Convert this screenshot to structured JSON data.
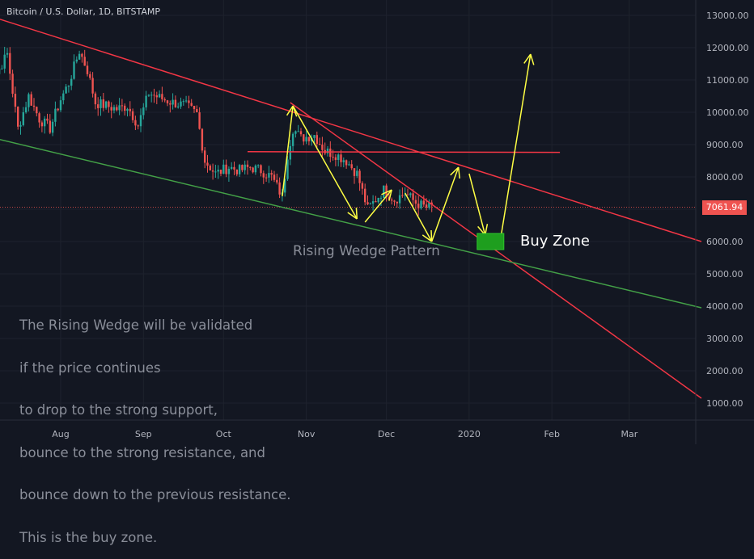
{
  "header": {
    "title": "Bitcoin / U.S. Dollar, 1D, BITSTAMP"
  },
  "annotations": {
    "pattern_label": "Rising Wedge Pattern",
    "buy_zone_label": "Buy Zone",
    "note_lines": [
      "The Rising Wedge will be validated",
      "if the price continues",
      "to drop to the strong support,",
      "bounce to the strong resistance, and",
      "bounce down to the previous resistance.",
      "This is the buy zone."
    ]
  },
  "colors": {
    "background": "#131722",
    "grid": "#1e222d",
    "up_candle": "#26a69a",
    "down_candle": "#ef5350",
    "resistance_line": "#f23645",
    "support_line": "#43a047",
    "arrows": "#ffff44",
    "buy_zone": "#1e9e1e",
    "axis_text": "#b2b5be"
  },
  "chart_data": {
    "type": "candlestick",
    "title": "Bitcoin / U.S. Dollar, 1D, BITSTAMP",
    "x_tick_labels": [
      "Aug",
      "Sep",
      "Oct",
      "Nov",
      "Dec",
      "2020",
      "Feb",
      "Mar"
    ],
    "y_tick_labels": [
      "13000.00",
      "12000.00",
      "11000.00",
      "10000.00",
      "9000.00",
      "8000.00",
      "7000.00",
      "6000.00",
      "5000.00",
      "4000.00",
      "3000.00",
      "2000.00",
      "1000.00"
    ],
    "ylim": [
      500,
      13500
    ],
    "last_price": "7061.94",
    "grid": true,
    "price_path": [
      [
        "2019-07-04",
        12900
      ],
      [
        "2019-07-08",
        11200
      ],
      [
        "2019-07-12",
        11800
      ],
      [
        "2019-07-16",
        9500
      ],
      [
        "2019-07-20",
        10500
      ],
      [
        "2019-07-24",
        9800
      ],
      [
        "2019-07-28",
        9500
      ],
      [
        "2019-08-01",
        10400
      ],
      [
        "2019-08-04",
        10900
      ],
      [
        "2019-08-08",
        11900
      ],
      [
        "2019-08-11",
        11300
      ],
      [
        "2019-08-14",
        10300
      ],
      [
        "2019-08-18",
        10200
      ],
      [
        "2019-08-22",
        10100
      ],
      [
        "2019-08-26",
        10200
      ],
      [
        "2019-08-30",
        9600
      ],
      [
        "2019-09-03",
        10600
      ],
      [
        "2019-09-07",
        10450
      ],
      [
        "2019-09-12",
        10300
      ],
      [
        "2019-09-17",
        10200
      ],
      [
        "2019-09-21",
        9950
      ],
      [
        "2019-09-24",
        8500
      ],
      [
        "2019-09-28",
        8100
      ],
      [
        "2019-10-03",
        8300
      ],
      [
        "2019-10-07",
        8200
      ],
      [
        "2019-10-11",
        8300
      ],
      [
        "2019-10-15",
        8200
      ],
      [
        "2019-10-19",
        8000
      ],
      [
        "2019-10-23",
        7400
      ],
      [
        "2019-10-25",
        8700
      ],
      [
        "2019-10-27",
        9500
      ],
      [
        "2019-10-30",
        9200
      ],
      [
        "2019-11-04",
        9300
      ],
      [
        "2019-11-08",
        8800
      ],
      [
        "2019-11-12",
        8700
      ],
      [
        "2019-11-16",
        8500
      ],
      [
        "2019-11-20",
        8100
      ],
      [
        "2019-11-24",
        7000
      ],
      [
        "2019-11-26",
        7200
      ],
      [
        "2019-11-30",
        7600
      ],
      [
        "2019-12-04",
        7300
      ],
      [
        "2019-12-08",
        7500
      ],
      [
        "2019-12-12",
        7200
      ],
      [
        "2019-12-16",
        7050
      ],
      [
        "2019-12-18",
        7080
      ]
    ],
    "drawn_lines": {
      "upper_resistance": [
        [
          "2019-06-27",
          13200
        ],
        [
          "2020-03-28",
          6000
        ]
      ],
      "steep_resistance": [
        [
          "2019-10-26",
          10300
        ],
        [
          "2020-03-28",
          1150
        ]
      ],
      "horizontal_resistance": [
        [
          "2019-10-10",
          8780
        ],
        [
          "2020-02-04",
          8760
        ]
      ],
      "support": [
        [
          "2019-06-27",
          9400
        ],
        [
          "2020-03-28",
          3950
        ]
      ]
    },
    "projection_arrows": [
      [
        [
          "2019-10-23",
          7400
        ],
        [
          "2019-10-27",
          10200
        ]
      ],
      [
        [
          "2019-10-27",
          10200
        ],
        [
          "2019-11-20",
          6700
        ]
      ],
      [
        [
          "2019-11-23",
          6600
        ],
        [
          "2019-12-03",
          7600
        ]
      ],
      [
        [
          "2019-12-08",
          7500
        ],
        [
          "2019-12-18",
          6000
        ]
      ],
      [
        [
          "2019-12-18",
          6000
        ],
        [
          "2019-12-28",
          8300
        ]
      ],
      [
        [
          "2020-01-01",
          8100
        ],
        [
          "2020-01-07",
          6200
        ]
      ],
      [
        [
          "2020-01-13",
          6200
        ],
        [
          "2020-01-24",
          11800
        ]
      ]
    ],
    "buy_zone": {
      "from": "2020-01-04",
      "to": "2020-01-14",
      "low": 5750,
      "high": 6250
    }
  }
}
